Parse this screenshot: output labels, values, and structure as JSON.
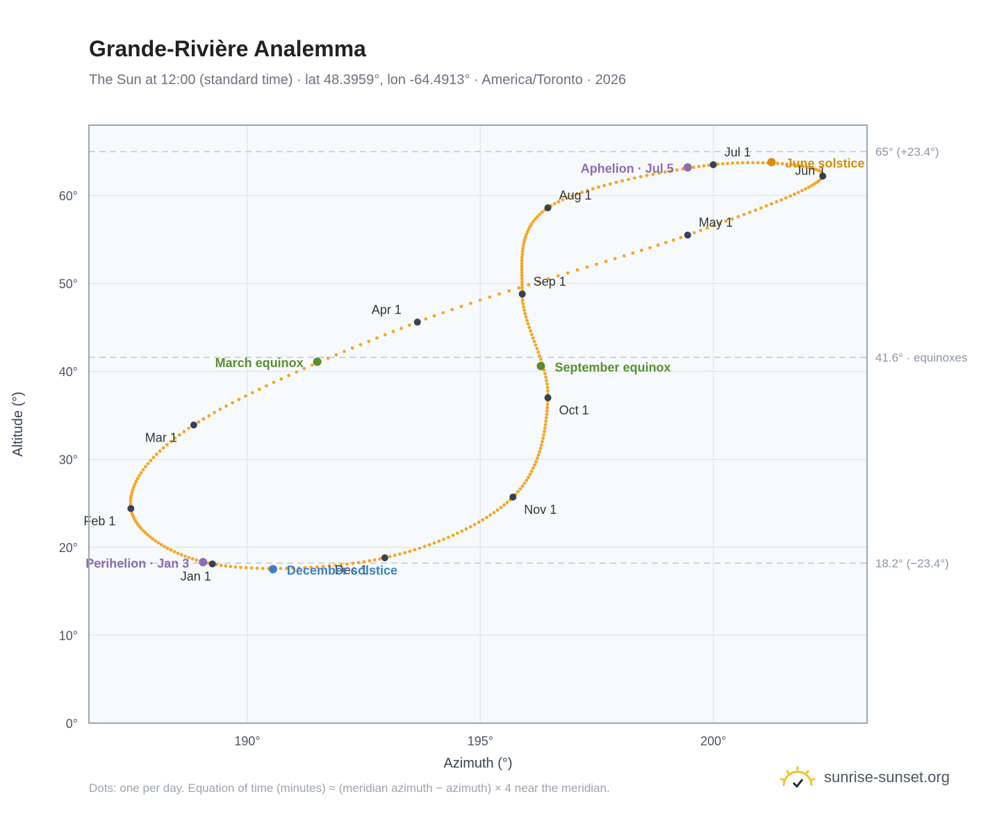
{
  "header": {
    "title": "Grande-Rivière Analemma",
    "subtitle": "The Sun at 12:00 (standard time) · lat 48.3959°, lon -64.4913° · America/Toronto · 2026"
  },
  "footer": {
    "note": "Dots: one per day. Equation of time (minutes) ≈ (meridian azimuth − azimuth) × 4 near the meridian.",
    "brand": "sunrise-sunset.org"
  },
  "colors": {
    "curve": "#f5a623",
    "month_marker": "#374151",
    "equinox": "#5a8f2e",
    "june_solstice": "#d4900a",
    "december_solstice": "#3b7fc4",
    "apsis": "#8e6bb5",
    "reference_line": "#c0c6cf",
    "plot_background": "#f7fafd",
    "grid": "#e3e8ee",
    "axis_frame": "#9aa5b4"
  },
  "chart_data": {
    "type": "scatter",
    "xlabel": "Azimuth (°)",
    "ylabel": "Altitude (°)",
    "xlim": [
      186.6,
      203.3
    ],
    "ylim": [
      0,
      68
    ],
    "x_ticks": [
      190,
      195,
      200
    ],
    "x_tick_labels": [
      "190°",
      "195°",
      "200°"
    ],
    "y_ticks": [
      0,
      10,
      20,
      30,
      40,
      50,
      60
    ],
    "y_tick_labels": [
      "0°",
      "10°",
      "20°",
      "30°",
      "40°",
      "50°",
      "60°"
    ],
    "grid": true,
    "reference_lines": [
      {
        "y": 65.0,
        "label": "65° (+23.4°)"
      },
      {
        "y": 41.6,
        "label": "41.6° · equinoxes"
      },
      {
        "y": 18.2,
        "label": "18.2° (−23.4°)"
      }
    ],
    "month_markers": [
      {
        "label": "Jan 1",
        "azimuth": 189.25,
        "altitude": 18.1
      },
      {
        "label": "Feb 1",
        "azimuth": 187.5,
        "altitude": 24.4
      },
      {
        "label": "Mar 1",
        "azimuth": 188.85,
        "altitude": 33.9
      },
      {
        "label": "Apr 1",
        "azimuth": 193.65,
        "altitude": 45.6
      },
      {
        "label": "May 1",
        "azimuth": 199.45,
        "altitude": 55.5
      },
      {
        "label": "Jun 1",
        "azimuth": 202.35,
        "altitude": 62.2
      },
      {
        "label": "Jul 1",
        "azimuth": 200.0,
        "altitude": 63.5
      },
      {
        "label": "Aug 1",
        "azimuth": 196.45,
        "altitude": 58.6
      },
      {
        "label": "Sep 1",
        "azimuth": 195.9,
        "altitude": 48.8
      },
      {
        "label": "Oct 1",
        "azimuth": 196.45,
        "altitude": 37.0
      },
      {
        "label": "Nov 1",
        "azimuth": 195.7,
        "altitude": 25.7
      },
      {
        "label": "Dec 1",
        "azimuth": 192.95,
        "altitude": 18.8
      }
    ],
    "events": [
      {
        "label": "March equinox",
        "azimuth": 191.5,
        "altitude": 41.1,
        "kind": "equinox"
      },
      {
        "label": "September equinox",
        "azimuth": 196.3,
        "altitude": 40.6,
        "kind": "equinox"
      },
      {
        "label": "June solstice",
        "azimuth": 201.25,
        "altitude": 63.8,
        "kind": "june_solstice"
      },
      {
        "label": "December solstice",
        "azimuth": 190.55,
        "altitude": 17.5,
        "kind": "december_solstice"
      },
      {
        "label": "Perihelion · Jan 3",
        "azimuth": 189.05,
        "altitude": 18.3,
        "kind": "apsis"
      },
      {
        "label": "Aphelion · Jul 5",
        "azimuth": 199.45,
        "altitude": 63.2,
        "kind": "apsis"
      }
    ]
  }
}
